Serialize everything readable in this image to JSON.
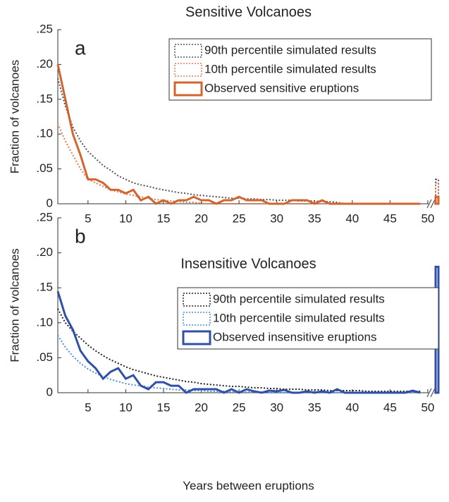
{
  "chart_data": [
    {
      "type": "line",
      "title": "Sensitive Volcanoes",
      "annotation": "a",
      "ylabel": "Fraction of volcanoes",
      "x": [
        1,
        2,
        3,
        4,
        5,
        6,
        7,
        8,
        9,
        10,
        11,
        12,
        13,
        14,
        15,
        16,
        17,
        18,
        19,
        20,
        21,
        22,
        23,
        24,
        25,
        26,
        27,
        28,
        29,
        30,
        31,
        32,
        33,
        34,
        35,
        36,
        37,
        38,
        39,
        40,
        41,
        42,
        43,
        44,
        45,
        46,
        47,
        48,
        49
      ],
      "xlim": [
        1,
        51.5
      ],
      "xticks": [
        5,
        10,
        15,
        20,
        25,
        30,
        35,
        40,
        45,
        50
      ],
      "ylim": [
        0,
        0.25
      ],
      "yticks": [
        0,
        {
          "value": 0.05,
          "label": ".05"
        },
        {
          "value": 0.1,
          "label": ".10"
        },
        {
          "value": 0.15,
          "label": ".15"
        },
        {
          "value": 0.2,
          "label": ".20"
        },
        {
          "value": 0.25,
          "label": ".25"
        }
      ],
      "legend": "upper right",
      "series": [
        {
          "name": "90th percentile simulated results",
          "color": "#555555",
          "style": "dotted",
          "overflow": 0.035,
          "values": [
            0.18,
            0.14,
            0.11,
            0.09,
            0.075,
            0.065,
            0.055,
            0.048,
            0.04,
            0.035,
            0.03,
            0.027,
            0.025,
            0.022,
            0.02,
            0.018,
            0.016,
            0.015,
            0.013,
            0.012,
            0.011,
            0.01,
            0.009,
            0.008,
            0.008,
            0.007,
            0.007,
            0.006,
            0.006,
            0.005,
            0.005,
            0.005,
            0.004,
            0.004,
            0.004,
            0.003,
            0.003,
            0.002,
            0,
            0,
            0,
            0,
            0,
            0,
            0,
            0,
            0,
            0,
            0
          ]
        },
        {
          "name": "10th percentile simulated results",
          "color": "#e07a55",
          "style": "dotted",
          "overflow": 0.03,
          "values": [
            0.115,
            0.09,
            0.07,
            0.05,
            0.035,
            0.03,
            0.025,
            0.02,
            0.017,
            0.014,
            0.012,
            0.01,
            0.008,
            0.006,
            0.005,
            0.004,
            0.003,
            0.002,
            0.002,
            0.001,
            0,
            0,
            0,
            0,
            0,
            0,
            0,
            0,
            0,
            0,
            0,
            0,
            0,
            0,
            0,
            0,
            0,
            0,
            0,
            0,
            0,
            0,
            0,
            0,
            0,
            0,
            0,
            0,
            0
          ]
        },
        {
          "name": "Observed sensitive eruptions",
          "color": "#d2652d",
          "style": "solid",
          "overflow": 0.01,
          "values": [
            0.2,
            0.15,
            0.1,
            0.07,
            0.035,
            0.035,
            0.03,
            0.02,
            0.02,
            0.015,
            0.02,
            0.005,
            0.01,
            0,
            0.005,
            0,
            0.005,
            0.005,
            0.01,
            0.005,
            0.005,
            0,
            0.005,
            0.005,
            0.01,
            0.005,
            0.005,
            0.005,
            0,
            0,
            0,
            0.005,
            0.005,
            0.005,
            0,
            0.005,
            0,
            0,
            0,
            0,
            0,
            0,
            0,
            0,
            0,
            0,
            0,
            0,
            0
          ]
        }
      ]
    },
    {
      "type": "line",
      "title": "Insensitive Volcanoes",
      "annotation": "b",
      "ylabel": "Fraction of volcanoes",
      "xlabel": "Years between eruptions",
      "x": [
        1,
        2,
        3,
        4,
        5,
        6,
        7,
        8,
        9,
        10,
        11,
        12,
        13,
        14,
        15,
        16,
        17,
        18,
        19,
        20,
        21,
        22,
        23,
        24,
        25,
        26,
        27,
        28,
        29,
        30,
        31,
        32,
        33,
        34,
        35,
        36,
        37,
        38,
        39,
        40,
        41,
        42,
        43,
        44,
        45,
        46,
        47,
        48,
        49
      ],
      "xlim": [
        1,
        51.5
      ],
      "xticks": [
        5,
        10,
        15,
        20,
        25,
        30,
        35,
        40,
        45,
        50
      ],
      "ylim": [
        0,
        0.25
      ],
      "yticks": [
        0,
        {
          "value": 0.05,
          "label": ".05"
        },
        {
          "value": 0.1,
          "label": ".10"
        },
        {
          "value": 0.15,
          "label": ".15"
        },
        {
          "value": 0.2,
          "label": ".20"
        },
        {
          "value": 0.25,
          "label": ".25"
        }
      ],
      "legend": "upper right",
      "series": [
        {
          "name": "90th percentile simulated results",
          "color": "#222222",
          "style": "dotted",
          "values": [
            0.12,
            0.1,
            0.088,
            0.078,
            0.068,
            0.06,
            0.053,
            0.047,
            0.042,
            0.037,
            0.033,
            0.03,
            0.027,
            0.024,
            0.022,
            0.02,
            0.018,
            0.016,
            0.015,
            0.013,
            0.012,
            0.011,
            0.01,
            0.009,
            0.009,
            0.008,
            0.007,
            0.007,
            0.006,
            0.006,
            0.005,
            0.005,
            0.005,
            0.004,
            0.004,
            0.004,
            0.003,
            0.003,
            0.003,
            0.003,
            0.003,
            0.002,
            0.002,
            0.002,
            0.002,
            0.002,
            0.002,
            0.002,
            0.002
          ]
        },
        {
          "name": "10th percentile simulated results",
          "color": "#4a90d9",
          "style": "dotted",
          "values": [
            0.082,
            0.065,
            0.052,
            0.042,
            0.034,
            0.028,
            0.023,
            0.019,
            0.016,
            0.013,
            0.011,
            0.01,
            0.008,
            0.007,
            0.006,
            0.005,
            0.004,
            0.004,
            0.003,
            0.003,
            0.002,
            0.002,
            0.002,
            0.001,
            0.001,
            0.001,
            0.001,
            0,
            0,
            0,
            0,
            0,
            0,
            0,
            0,
            0,
            0,
            0,
            0,
            0,
            0,
            0,
            0,
            0,
            0,
            0,
            0,
            0,
            0
          ]
        },
        {
          "name": "Observed insensitive eruptions",
          "color": "#3050a8",
          "style": "solid",
          "overflow": 0.18,
          "values": [
            0.145,
            0.11,
            0.09,
            0.06,
            0.045,
            0.035,
            0.02,
            0.03,
            0.035,
            0.02,
            0.025,
            0.01,
            0.005,
            0.015,
            0.015,
            0.01,
            0.01,
            0,
            0.005,
            0.005,
            0.005,
            0.005,
            0,
            0.005,
            0,
            0.005,
            0.002,
            0,
            0.003,
            0.002,
            0.004,
            0,
            0,
            0.002,
            0,
            0.002,
            0,
            0.005,
            0,
            0,
            0,
            0,
            0,
            0,
            0,
            0,
            0,
            0.003,
            0
          ]
        }
      ]
    }
  ]
}
